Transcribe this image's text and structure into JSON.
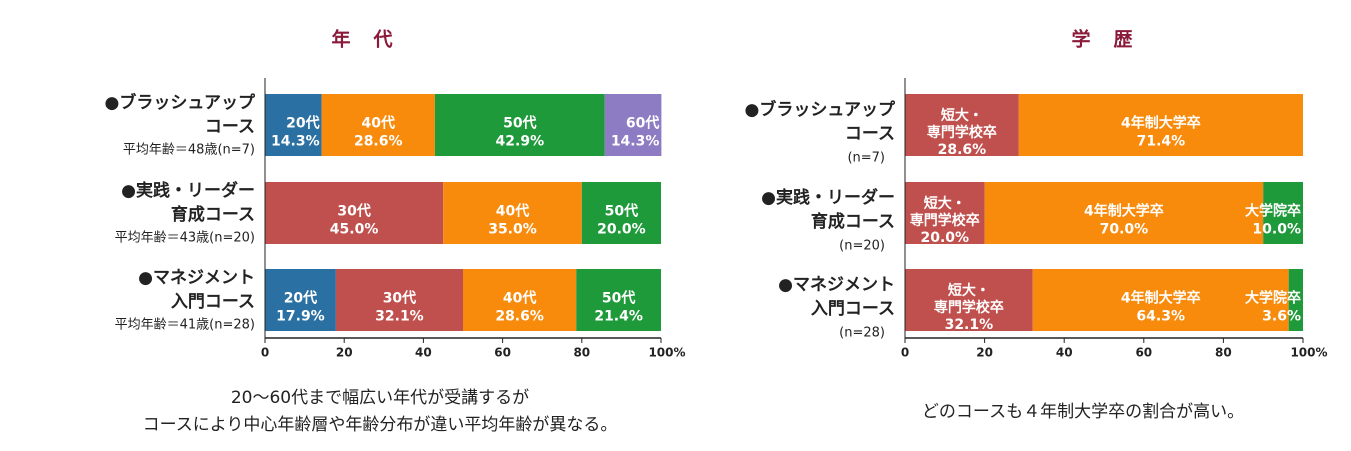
{
  "chart_data": [
    {
      "type": "stacked-barh",
      "title": "年　代",
      "categories": [
        [
          "●ブラッシュアップ",
          "コース"
        ],
        [
          "●実践・リーダー",
          "育成コース"
        ],
        [
          "●マネジメント",
          "入門コース"
        ]
      ],
      "category_notes": [
        "平均年齢＝48歳(n=7)",
        "平均年齢＝43歳(n=20)",
        "平均年齢＝41歳(n=28)"
      ],
      "series": [
        {
          "name": "20代",
          "color": "#2a70a2",
          "values": [
            14.3,
            null,
            17.9
          ],
          "value_labels": [
            "14.3%",
            null,
            "17.9%"
          ]
        },
        {
          "name": "30代",
          "color": "#c0504d",
          "values": [
            null,
            45.0,
            32.1
          ],
          "value_labels": [
            null,
            "45.0%",
            "32.1%"
          ]
        },
        {
          "name": "40代",
          "color": "#f98b0c",
          "values": [
            28.6,
            35.0,
            28.6
          ],
          "value_labels": [
            "28.6%",
            "35.0%",
            "28.6%"
          ]
        },
        {
          "name": "50代",
          "color": "#1f9a3a",
          "values": [
            42.9,
            20.0,
            21.4
          ],
          "value_labels": [
            "42.9%",
            "20.0%",
            "21.4%"
          ]
        },
        {
          "name": "60代",
          "color": "#8d7cc3",
          "values": [
            14.3,
            null,
            null
          ],
          "value_labels": [
            "14.3%",
            null,
            null
          ]
        }
      ],
      "xlim": [
        0,
        100
      ],
      "xticks": [
        0,
        20,
        40,
        60,
        80,
        {
          "value": 100,
          "label": "100%"
        }
      ],
      "caption": [
        "20〜60代まで幅広い年代が受講するが",
        "コースにより中心年齢層や年齢分布が違い平均年齢が異なる。"
      ]
    },
    {
      "type": "stacked-barh",
      "title": "学　歴",
      "categories": [
        [
          "●ブラッシュアップ",
          "コース"
        ],
        [
          "●実践・リーダー",
          "育成コース"
        ],
        [
          "●マネジメント",
          "入門コース"
        ]
      ],
      "category_notes": [
        "(n=7)",
        "(n=20)",
        "(n=28)"
      ],
      "series": [
        {
          "name": "短大・\n専門学校卒",
          "color": "#c0504d",
          "values": [
            28.6,
            20.0,
            32.1
          ],
          "value_labels": [
            "28.6%",
            "20.0%",
            "32.1%"
          ]
        },
        {
          "name": "4年制大学卒",
          "color": "#f98b0c",
          "values": [
            71.4,
            70.0,
            64.3
          ],
          "value_labels": [
            "71.4%",
            "70.0%",
            "64.3%"
          ]
        },
        {
          "name": "大学院卒",
          "color": "#1f9a3a",
          "values": [
            null,
            10.0,
            3.6
          ],
          "value_labels": [
            null,
            "10.0%",
            "3.6%"
          ]
        }
      ],
      "xlim": [
        0,
        100
      ],
      "xticks": [
        0,
        20,
        40,
        60,
        80,
        {
          "value": 100,
          "label": "100%"
        }
      ],
      "caption": [
        "どのコースも４年制大学卒の割合が高い。"
      ]
    }
  ]
}
